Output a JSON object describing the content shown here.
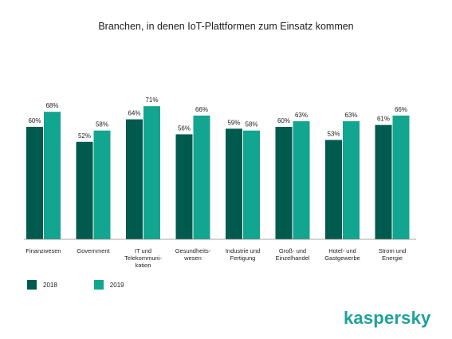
{
  "chart_data": {
    "type": "bar",
    "title": "Branchen, in denen IoT-Plattformen zum Einsatz kommen",
    "categories": [
      [
        "Finanzwesen"
      ],
      [
        "Government"
      ],
      [
        "IT und",
        "Telekommuni-",
        "kation"
      ],
      [
        "Gesundheits-",
        "wesen"
      ],
      [
        "Industrie und",
        "Fertigung"
      ],
      [
        "Groß- und",
        "Einzelhandel"
      ],
      [
        "Hotel- und",
        "Gastgewerbe"
      ],
      [
        "Strom und",
        "Energie"
      ]
    ],
    "series": [
      {
        "name": "2018",
        "color": "#005a4e",
        "values": [
          60,
          52,
          64,
          56,
          59,
          60,
          53,
          61
        ]
      },
      {
        "name": "2019",
        "color": "#12a58f",
        "values": [
          68,
          58,
          71,
          66,
          58,
          63,
          63,
          66
        ]
      }
    ],
    "value_suffix": "%",
    "ylim": [
      0,
      100
    ],
    "grid": false,
    "legend_position": "bottom-left"
  },
  "brand": {
    "logo_text": "kaspersky",
    "color": "#1ea29a"
  }
}
